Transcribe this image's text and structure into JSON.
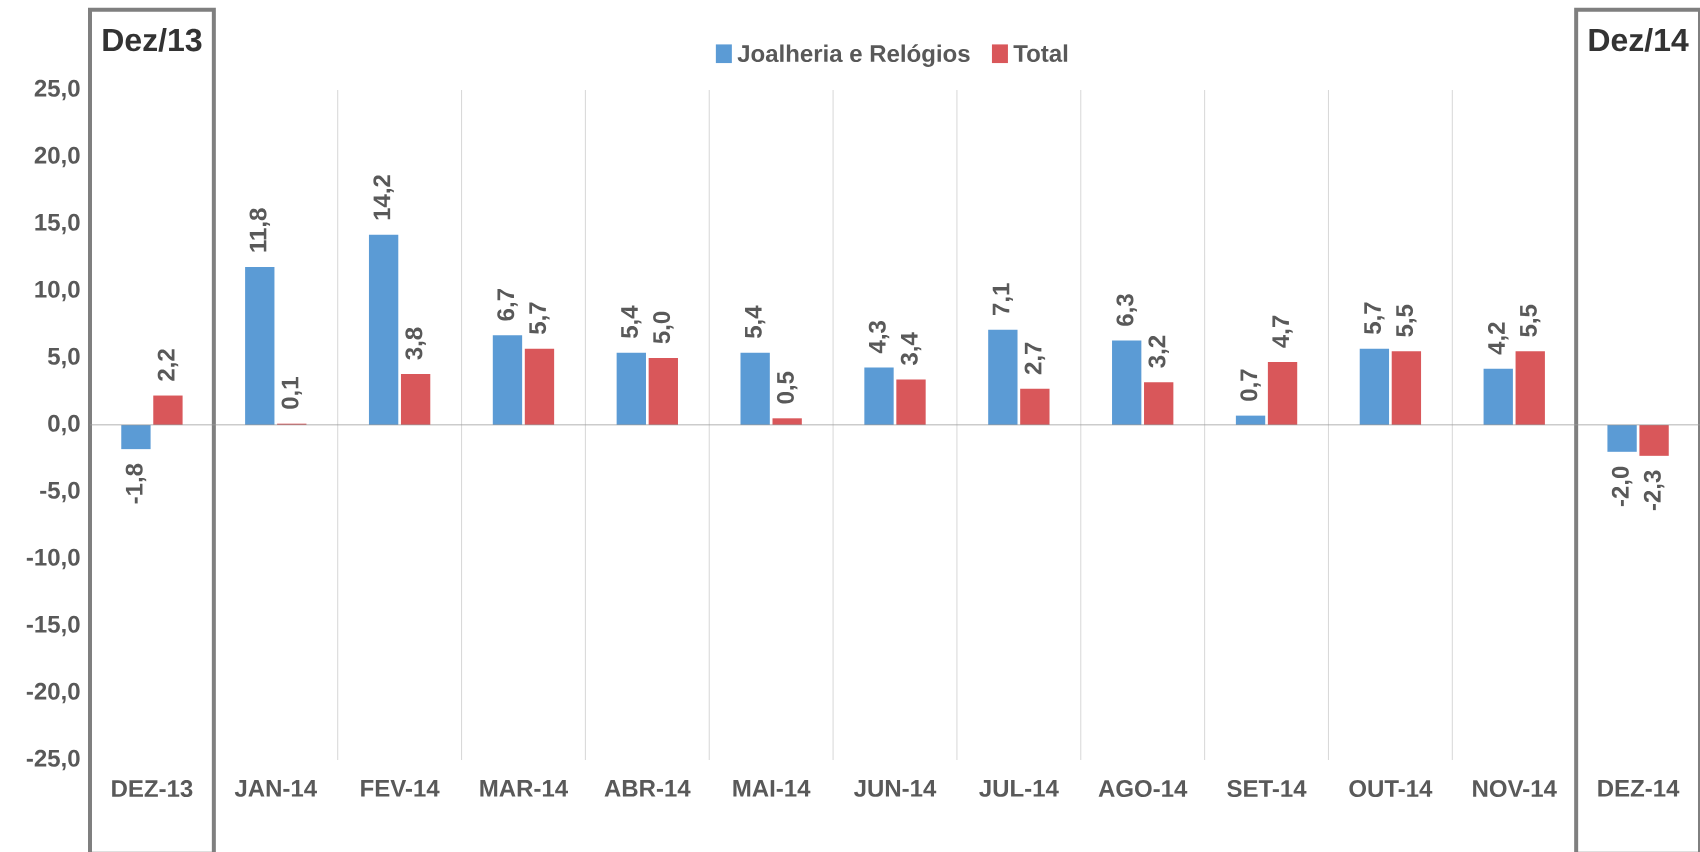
{
  "chart_data": {
    "type": "bar",
    "categories": [
      "DEZ-13",
      "JAN-14",
      "FEV-14",
      "MAR-14",
      "ABR-14",
      "MAI-14",
      "JUN-14",
      "JUL-14",
      "AGO-14",
      "SET-14",
      "OUT-14",
      "NOV-14",
      "DEZ-14"
    ],
    "series": [
      {
        "name": "Joalheria e Relógios",
        "color": "#5b9bd5",
        "values": [
          -1.8,
          11.8,
          14.2,
          6.7,
          5.4,
          5.4,
          4.3,
          7.1,
          6.3,
          0.7,
          5.7,
          4.2,
          -2.0
        ],
        "value_labels": [
          "-1,8",
          "11,8",
          "14,2",
          "6,7",
          "5,4",
          "5,4",
          "4,3",
          "7,1",
          "6,3",
          "0,7",
          "5,7",
          "4,2",
          "-2,0"
        ]
      },
      {
        "name": "Total",
        "color": "#d9575a",
        "values": [
          2.2,
          0.1,
          3.8,
          5.7,
          5.0,
          0.5,
          3.4,
          2.7,
          3.2,
          4.7,
          5.5,
          5.5,
          -2.3
        ],
        "value_labels": [
          "2,2",
          "0,1",
          "3,8",
          "5,7",
          "5,0",
          "0,5",
          "3,4",
          "2,7",
          "3,2",
          "4,7",
          "5,5",
          "5,5",
          "-2,3"
        ]
      }
    ],
    "ylim": [
      -25,
      25
    ],
    "yticks": [
      {
        "value": -25,
        "label": "-25,0"
      },
      {
        "value": -20,
        "label": "-20,0"
      },
      {
        "value": -15,
        "label": "-15,0"
      },
      {
        "value": -10,
        "label": "-10,0"
      },
      {
        "value": -5,
        "label": "-5,0"
      },
      {
        "value": 0,
        "label": "0,0"
      },
      {
        "value": 5,
        "label": "5,0"
      },
      {
        "value": 10,
        "label": "10,0"
      },
      {
        "value": 15,
        "label": "15,0"
      },
      {
        "value": 20,
        "label": "20,0"
      },
      {
        "value": 25,
        "label": "25,0"
      }
    ],
    "annotations": [
      "Dez/13",
      "Dez/14"
    ],
    "grid": "x",
    "legend": "top"
  }
}
